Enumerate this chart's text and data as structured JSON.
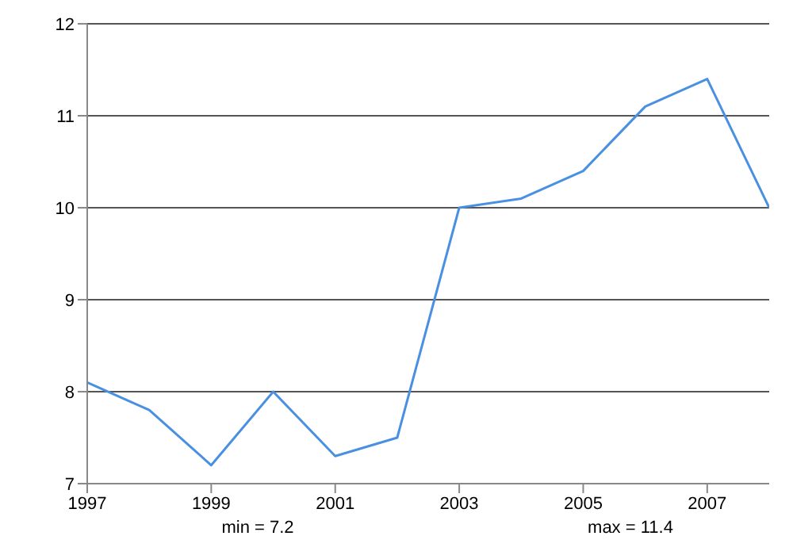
{
  "chart_data": {
    "type": "line",
    "x": [
      1997,
      1998,
      1999,
      2000,
      2001,
      2002,
      2003,
      2004,
      2005,
      2006,
      2007,
      2008
    ],
    "series": [
      {
        "color": "#4a90e2",
        "values": [
          8.1,
          7.8,
          7.2,
          8.0,
          7.3,
          7.5,
          10.0,
          10.1,
          10.4,
          11.1,
          11.4,
          10.0
        ]
      }
    ],
    "xlim": [
      1997,
      2008
    ],
    "xticks": [
      1997,
      1999,
      2001,
      2003,
      2005,
      2007
    ],
    "ylim": [
      7,
      12
    ],
    "yticks": [
      7,
      8,
      9,
      10,
      11,
      12
    ],
    "grid": "y",
    "legend": false,
    "marker": "none",
    "line_style": "solid",
    "annotations": [
      "min = 7.2",
      "max = 11.4"
    ]
  }
}
